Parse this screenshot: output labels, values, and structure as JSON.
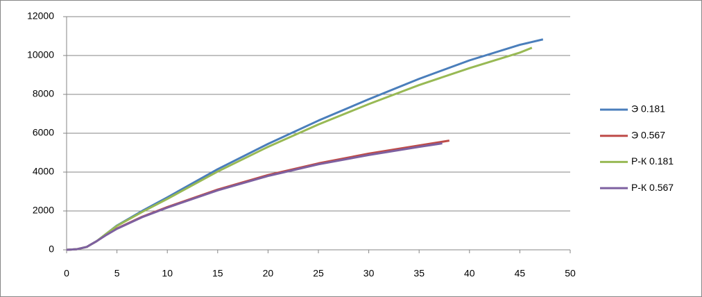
{
  "chart_data": {
    "type": "line",
    "xlim": [
      0,
      50
    ],
    "xticks": [
      0,
      5,
      10,
      15,
      20,
      25,
      30,
      35,
      40,
      45,
      50
    ],
    "ylim": [
      0,
      12000
    ],
    "yticks": [
      0,
      2000,
      4000,
      6000,
      8000,
      10000,
      12000
    ],
    "grid": true,
    "legend": "right",
    "series": [
      {
        "name": "Э 0.181",
        "color": "#4a7ebb",
        "x": [
          0,
          1,
          2,
          3,
          4,
          5,
          7.5,
          10,
          15,
          20,
          25,
          30,
          35,
          40,
          45,
          47.3
        ],
        "values": [
          0,
          30,
          150,
          450,
          850,
          1250,
          2000,
          2700,
          4150,
          5450,
          6650,
          7750,
          8800,
          9750,
          10550,
          10830
        ]
      },
      {
        "name": "Э 0.567",
        "color": "#be4b48",
        "x": [
          0,
          1,
          2,
          3,
          4,
          5,
          7.5,
          10,
          15,
          20,
          25,
          30,
          35,
          38
        ],
        "values": [
          0,
          30,
          150,
          450,
          800,
          1100,
          1700,
          2200,
          3100,
          3850,
          4450,
          4950,
          5370,
          5620
        ]
      },
      {
        "name": "Р-К 0.181",
        "color": "#98b954",
        "x": [
          0,
          1,
          2,
          3,
          4,
          5,
          7.5,
          10,
          15,
          20,
          25,
          30,
          35,
          40,
          45,
          46.2
        ],
        "values": [
          0,
          30,
          150,
          450,
          850,
          1230,
          1950,
          2620,
          4030,
          5300,
          6450,
          7500,
          8480,
          9350,
          10150,
          10400
        ]
      },
      {
        "name": "Р-К 0.567",
        "color": "#7d60a0",
        "x": [
          0,
          1,
          2,
          3,
          4,
          5,
          7.5,
          10,
          15,
          20,
          25,
          30,
          35,
          37.3
        ],
        "values": [
          0,
          30,
          150,
          450,
          780,
          1080,
          1680,
          2170,
          3060,
          3800,
          4400,
          4880,
          5300,
          5480
        ]
      }
    ]
  }
}
